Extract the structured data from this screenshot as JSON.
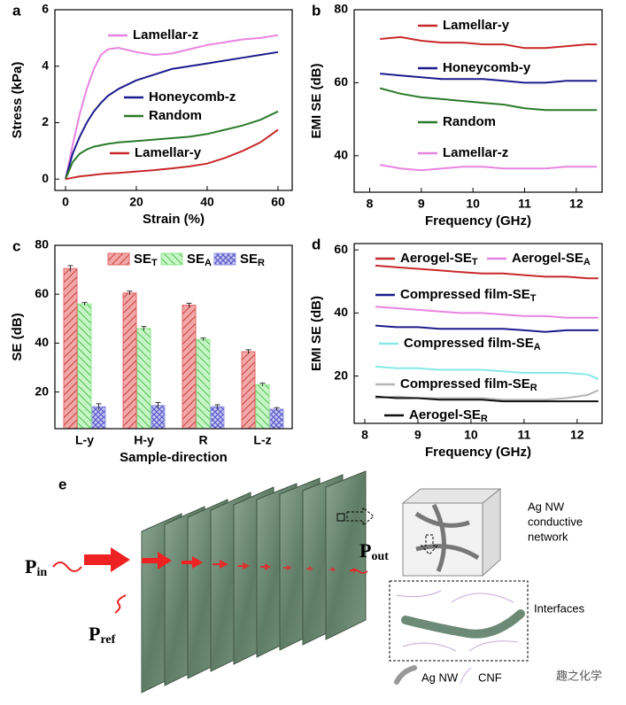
{
  "chart_data": [
    {
      "type": "line",
      "label": "a",
      "xlabel": "Strain (%)",
      "ylabel": "Stress (kPa)",
      "x": [
        0,
        2,
        4,
        6,
        8,
        10,
        12,
        15,
        20,
        25,
        30,
        35,
        40,
        45,
        50,
        55,
        60
      ],
      "xlim": [
        -3,
        64
      ],
      "xticks": [
        0,
        20,
        40,
        60
      ],
      "ylim": [
        -0.4,
        6
      ],
      "yticks": [
        0,
        2,
        4,
        6
      ],
      "series": [
        {
          "name": "Lamellar-z",
          "color": "#e884e0",
          "values": [
            0,
            1.2,
            2.3,
            3.2,
            3.9,
            4.4,
            4.6,
            4.65,
            4.5,
            4.4,
            4.45,
            4.6,
            4.75,
            4.85,
            4.95,
            5.0,
            5.1
          ]
        },
        {
          "name": "Honeycomb-z",
          "color": "#1c1c8e",
          "values": [
            0,
            0.9,
            1.5,
            2.0,
            2.4,
            2.7,
            2.95,
            3.2,
            3.5,
            3.7,
            3.9,
            4.0,
            4.1,
            4.2,
            4.3,
            4.4,
            4.5
          ]
        },
        {
          "name": "Random",
          "color": "#2a7a2a",
          "values": [
            0,
            0.6,
            0.9,
            1.05,
            1.15,
            1.2,
            1.25,
            1.3,
            1.35,
            1.4,
            1.45,
            1.5,
            1.6,
            1.75,
            1.9,
            2.1,
            2.4
          ]
        },
        {
          "name": "Lamellar-y",
          "color": "#c8282a",
          "values": [
            0,
            0.05,
            0.1,
            0.12,
            0.15,
            0.18,
            0.2,
            0.22,
            0.27,
            0.32,
            0.38,
            0.45,
            0.55,
            0.75,
            1.0,
            1.3,
            1.75
          ]
        }
      ]
    },
    {
      "type": "line",
      "label": "b",
      "xlabel": "Frequency (GHz)",
      "ylabel": "EMI SE (dB)",
      "x": [
        8.2,
        8.6,
        9.0,
        9.4,
        9.8,
        10.2,
        10.6,
        11.0,
        11.4,
        11.8,
        12.2,
        12.4
      ],
      "xlim": [
        7.7,
        12.5
      ],
      "xticks": [
        8,
        9,
        10,
        11,
        12
      ],
      "ylim": [
        30,
        80
      ],
      "yticks": [
        40,
        60,
        80
      ],
      "series": [
        {
          "name": "Lamellar-y",
          "color": "#c8282a",
          "values": [
            72,
            72.5,
            71.5,
            71,
            71,
            70.5,
            70.5,
            69.5,
            69.5,
            70,
            70.5,
            70.5
          ]
        },
        {
          "name": "Honeycomb-y",
          "color": "#1c1c8e",
          "values": [
            62.5,
            62,
            61.5,
            61,
            61,
            61,
            60.5,
            60,
            60,
            60.5,
            60.5,
            60.5
          ]
        },
        {
          "name": "Random",
          "color": "#2a7a2a",
          "values": [
            58.5,
            57,
            56,
            55.5,
            55,
            54.5,
            54,
            53,
            52.5,
            52.5,
            52.5,
            52.5
          ]
        },
        {
          "name": "Lamellar-z",
          "color": "#e884e0",
          "values": [
            37.5,
            36.5,
            36,
            36.5,
            37,
            37,
            36.5,
            36.5,
            36.5,
            37,
            37,
            37
          ]
        }
      ]
    },
    {
      "type": "bar",
      "label": "c",
      "xlabel": "Sample-direction",
      "ylabel": "SE (dB)",
      "categories": [
        "L-y",
        "H-y",
        "R",
        "L-z"
      ],
      "ylim": [
        5,
        80
      ],
      "yticks": [
        20,
        40,
        60,
        80
      ],
      "series": [
        {
          "name": "SE",
          "subscript": "T",
          "color": "#e06464",
          "values": [
            70.5,
            60.5,
            55.5,
            36.5
          ],
          "errors": [
            1.2,
            0.8,
            0.8,
            0.8
          ]
        },
        {
          "name": "SE",
          "subscript": "A",
          "color": "#8ee88e",
          "values": [
            56,
            46,
            41.5,
            23
          ],
          "errors": [
            0.6,
            0.8,
            0.6,
            0.6
          ]
        },
        {
          "name": "SE",
          "subscript": "R",
          "color": "#9a9ae6",
          "values": [
            14,
            14.5,
            14,
            13
          ],
          "errors": [
            1.2,
            1.2,
            0.8,
            0.6
          ]
        }
      ]
    },
    {
      "type": "line",
      "label": "d",
      "xlabel": "Frequency (GHz)",
      "ylabel": "EMI SE (dB)",
      "x": [
        8.2,
        8.6,
        9.0,
        9.4,
        9.8,
        10.2,
        10.6,
        11.0,
        11.4,
        11.8,
        12.2,
        12.4
      ],
      "xlim": [
        7.8,
        12.47
      ],
      "xticks": [
        8,
        9,
        10,
        11,
        12
      ],
      "ylim": [
        5,
        62
      ],
      "yticks": [
        20,
        40,
        60
      ],
      "series": [
        {
          "name": "Aerogel-SE",
          "subscript": "T",
          "color": "#c8282a",
          "values": [
            55,
            54.5,
            54,
            53.5,
            53,
            52.5,
            52.5,
            52,
            51.5,
            51.5,
            51,
            51
          ]
        },
        {
          "name": "Aerogel-SE",
          "subscript": "A",
          "color": "#e884e0",
          "values": [
            42,
            41.5,
            41,
            40.5,
            40,
            40,
            39.5,
            39,
            39,
            38.5,
            38.5,
            38.5
          ]
        },
        {
          "name": "Compressed film-SE",
          "subscript": "T",
          "color": "#1c1c8e",
          "values": [
            36,
            35.5,
            35.5,
            35,
            35,
            35,
            35,
            34.5,
            34,
            34.5,
            34.5,
            34.5
          ]
        },
        {
          "name": "Compressed film-SE",
          "subscript": "A",
          "color": "#86e8e8",
          "values": [
            23,
            22.5,
            22.5,
            22,
            22,
            22,
            21.5,
            21,
            21,
            21,
            20.5,
            19
          ]
        },
        {
          "name": "Compressed film-SE",
          "subscript": "R",
          "color": "#b4b4b4",
          "values": [
            13,
            13.5,
            13,
            13,
            13,
            13,
            12.5,
            12.5,
            12.5,
            13,
            14,
            15.5
          ]
        },
        {
          "name": "Aerogel-SE",
          "subscript": "R",
          "color": "#111111",
          "values": [
            13.5,
            13,
            13,
            12.5,
            12.5,
            12.5,
            12,
            12,
            12,
            12,
            12,
            12
          ]
        }
      ]
    }
  ],
  "panel_e": {
    "label": "e",
    "p_in": {
      "main": "P",
      "sub": "in"
    },
    "p_ref": {
      "main": "P",
      "sub": "ref"
    },
    "p_out": {
      "main": "P",
      "sub": "out"
    },
    "network": [
      "Ag NW",
      "conductive",
      "network"
    ],
    "interfaces": "Interfaces",
    "legend": [
      "Ag NW",
      "CNF"
    ],
    "watermark": "趣之化学"
  }
}
